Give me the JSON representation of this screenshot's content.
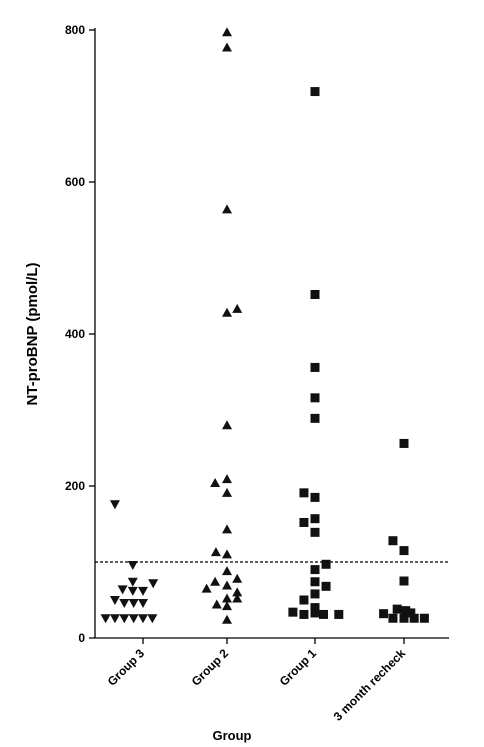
{
  "chart_data": {
    "type": "scatter",
    "xlabel": "Group",
    "ylabel": "NT-proBNP (pmol/L)",
    "ylim": [
      0,
      800
    ],
    "yticks": [
      0,
      200,
      400,
      600,
      800
    ],
    "grid": false,
    "reference_line": {
      "y": 100,
      "style": "dashed"
    },
    "categories": [
      "Group 3",
      "Group 2",
      "Group 1",
      "3 month recheck"
    ],
    "series": [
      {
        "category": "Group 3",
        "marker": "triangle-down",
        "points": [
          {
            "x": -0.33,
            "y": 176
          },
          {
            "x": -0.12,
            "y": 96
          },
          {
            "x": -0.12,
            "y": 74
          },
          {
            "x": 0.12,
            "y": 72
          },
          {
            "x": -0.24,
            "y": 64
          },
          {
            "x": -0.12,
            "y": 62
          },
          {
            "x": 0.0,
            "y": 62
          },
          {
            "x": -0.33,
            "y": 50
          },
          {
            "x": -0.22,
            "y": 46
          },
          {
            "x": -0.11,
            "y": 46
          },
          {
            "x": 0.0,
            "y": 46
          },
          {
            "x": -0.44,
            "y": 26
          },
          {
            "x": -0.33,
            "y": 26
          },
          {
            "x": -0.22,
            "y": 26
          },
          {
            "x": -0.11,
            "y": 26
          },
          {
            "x": 0.0,
            "y": 26
          },
          {
            "x": 0.11,
            "y": 26
          }
        ]
      },
      {
        "category": "Group 2",
        "marker": "triangle-up",
        "points": [
          {
            "x": 0.0,
            "y": 797
          },
          {
            "x": 0.0,
            "y": 777
          },
          {
            "x": 0.0,
            "y": 564
          },
          {
            "x": 0.12,
            "y": 433
          },
          {
            "x": 0.0,
            "y": 428
          },
          {
            "x": 0.0,
            "y": 280
          },
          {
            "x": -0.14,
            "y": 204
          },
          {
            "x": 0.0,
            "y": 209
          },
          {
            "x": 0.0,
            "y": 191
          },
          {
            "x": 0.0,
            "y": 143
          },
          {
            "x": -0.13,
            "y": 113
          },
          {
            "x": 0.0,
            "y": 110
          },
          {
            "x": 0.0,
            "y": 88
          },
          {
            "x": 0.12,
            "y": 78
          },
          {
            "x": -0.14,
            "y": 74
          },
          {
            "x": 0.0,
            "y": 69
          },
          {
            "x": -0.24,
            "y": 65
          },
          {
            "x": 0.12,
            "y": 60
          },
          {
            "x": 0.0,
            "y": 52
          },
          {
            "x": 0.12,
            "y": 52
          },
          {
            "x": -0.12,
            "y": 44
          },
          {
            "x": 0.0,
            "y": 42
          },
          {
            "x": 0.0,
            "y": 24
          }
        ]
      },
      {
        "category": "Group 1",
        "marker": "square",
        "points": [
          {
            "x": 0.0,
            "y": 719
          },
          {
            "x": 0.0,
            "y": 452
          },
          {
            "x": 0.0,
            "y": 356
          },
          {
            "x": 0.0,
            "y": 316
          },
          {
            "x": 0.0,
            "y": 289
          },
          {
            "x": -0.13,
            "y": 191
          },
          {
            "x": 0.0,
            "y": 185
          },
          {
            "x": 0.0,
            "y": 157
          },
          {
            "x": -0.13,
            "y": 152
          },
          {
            "x": 0.0,
            "y": 139
          },
          {
            "x": 0.13,
            "y": 97
          },
          {
            "x": 0.0,
            "y": 90
          },
          {
            "x": 0.0,
            "y": 74
          },
          {
            "x": 0.13,
            "y": 68
          },
          {
            "x": 0.0,
            "y": 58
          },
          {
            "x": -0.13,
            "y": 50
          },
          {
            "x": 0.0,
            "y": 40
          },
          {
            "x": -0.26,
            "y": 34
          },
          {
            "x": 0.0,
            "y": 33
          },
          {
            "x": -0.13,
            "y": 31
          },
          {
            "x": 0.1,
            "y": 31
          },
          {
            "x": 0.28,
            "y": 31
          }
        ]
      },
      {
        "category": "3 month recheck",
        "marker": "square",
        "points": [
          {
            "x": 0.0,
            "y": 256
          },
          {
            "x": -0.13,
            "y": 128
          },
          {
            "x": 0.0,
            "y": 115
          },
          {
            "x": 0.0,
            "y": 75
          },
          {
            "x": -0.08,
            "y": 38
          },
          {
            "x": 0.02,
            "y": 36
          },
          {
            "x": 0.08,
            "y": 33
          },
          {
            "x": -0.24,
            "y": 32
          },
          {
            "x": -0.13,
            "y": 26
          },
          {
            "x": 0.0,
            "y": 26
          },
          {
            "x": 0.12,
            "y": 26
          },
          {
            "x": 0.24,
            "y": 26
          }
        ]
      }
    ]
  },
  "colors": {
    "marker": "#111111",
    "axis": "#000000"
  }
}
